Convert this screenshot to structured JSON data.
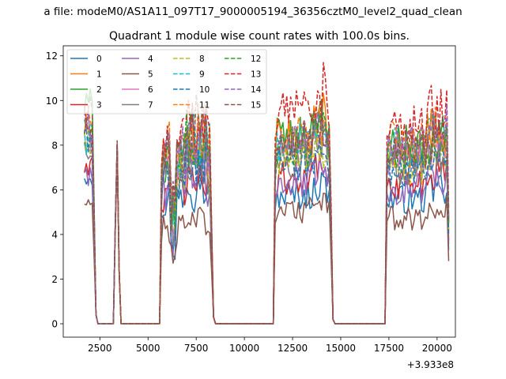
{
  "chart_data": {
    "type": "line",
    "suptitle": "a file: modeM0/AS1A11_097T17_9000005194_36356cztM0_level2_quad_clean",
    "title": "Quadrant 1 module wise count rates with 100.0s bins.",
    "xlabel": "",
    "ylabel": "",
    "x_offset_label": "+3.933e8",
    "xlim": [
      600,
      20950
    ],
    "ylim": [
      -0.6,
      12.45
    ],
    "xticks": [
      2500,
      5000,
      7500,
      10000,
      12500,
      15000,
      17500,
      20000
    ],
    "xtick_labels": [
      "2500",
      "5000",
      "7500",
      "10000",
      "12500",
      "15000",
      "17500",
      "20000"
    ],
    "yticks": [
      0,
      2,
      4,
      6,
      8,
      10,
      12
    ],
    "ytick_labels": [
      "0",
      "2",
      "4",
      "6",
      "8",
      "10",
      "12"
    ],
    "legend_position": "upper-left",
    "segments": [
      [
        1700,
        2600
      ],
      [
        3200,
        3600
      ],
      [
        5600,
        8500
      ],
      [
        11500,
        14600
      ],
      [
        17300,
        20600
      ]
    ],
    "gap_start_values": [
      3200,
      3600,
      8500,
      14600
    ],
    "series": [
      {
        "name": "0",
        "style": "solid",
        "color": "#1f77b4",
        "levels": [
          7.0,
          7.8,
          5.9,
          6.0,
          6.0
        ]
      },
      {
        "name": "1",
        "style": "solid",
        "color": "#ff7f0e",
        "levels": [
          9.0,
          8.0,
          8.0,
          8.6,
          8.3
        ]
      },
      {
        "name": "2",
        "style": "solid",
        "color": "#2ca02c",
        "levels": [
          10.0,
          8.0,
          7.9,
          8.8,
          8.6
        ]
      },
      {
        "name": "3",
        "style": "solid",
        "color": "#d62728",
        "levels": [
          7.1,
          8.0,
          6.4,
          6.8,
          6.8
        ]
      },
      {
        "name": "4",
        "style": "solid",
        "color": "#9467bd",
        "levels": [
          7.0,
          7.9,
          6.5,
          6.6,
          6.5
        ]
      },
      {
        "name": "5",
        "style": "solid",
        "color": "#8c564b",
        "levels": [
          5.5,
          7.4,
          4.6,
          5.3,
          5.1
        ]
      },
      {
        "name": "6",
        "style": "solid",
        "color": "#e377c2",
        "levels": [
          8.2,
          8.0,
          7.6,
          8.0,
          8.1
        ]
      },
      {
        "name": "7",
        "style": "solid",
        "color": "#7f7f7f",
        "levels": [
          8.2,
          8.0,
          7.4,
          7.7,
          7.6
        ]
      },
      {
        "name": "8",
        "style": "dashed",
        "color": "#bcbd22",
        "levels": [
          8.5,
          8.0,
          7.7,
          7.6,
          7.6
        ]
      },
      {
        "name": "9",
        "style": "dashed",
        "color": "#17becf",
        "levels": [
          8.6,
          8.0,
          8.3,
          8.5,
          8.5
        ]
      },
      {
        "name": "10",
        "style": "dashed",
        "color": "#1f77b4",
        "levels": [
          8.4,
          7.9,
          7.0,
          7.4,
          7.3
        ]
      },
      {
        "name": "11",
        "style": "dashed",
        "color": "#ff7f0e",
        "levels": [
          9.2,
          8.0,
          8.6,
          8.7,
          8.7
        ]
      },
      {
        "name": "12",
        "style": "dashed",
        "color": "#2ca02c",
        "levels": [
          8.8,
          8.0,
          8.0,
          8.3,
          8.2
        ]
      },
      {
        "name": "13",
        "style": "dashed",
        "color": "#d62728",
        "levels": [
          9.3,
          8.1,
          8.9,
          9.8,
          9.4
        ]
      },
      {
        "name": "14",
        "style": "dashed",
        "color": "#9467bd",
        "levels": [
          9.0,
          8.0,
          8.3,
          8.6,
          8.6
        ]
      },
      {
        "name": "15",
        "style": "dashed",
        "color": "#8c564b",
        "levels": [
          9.6,
          8.2,
          8.5,
          8.4,
          8.3
        ]
      }
    ]
  }
}
